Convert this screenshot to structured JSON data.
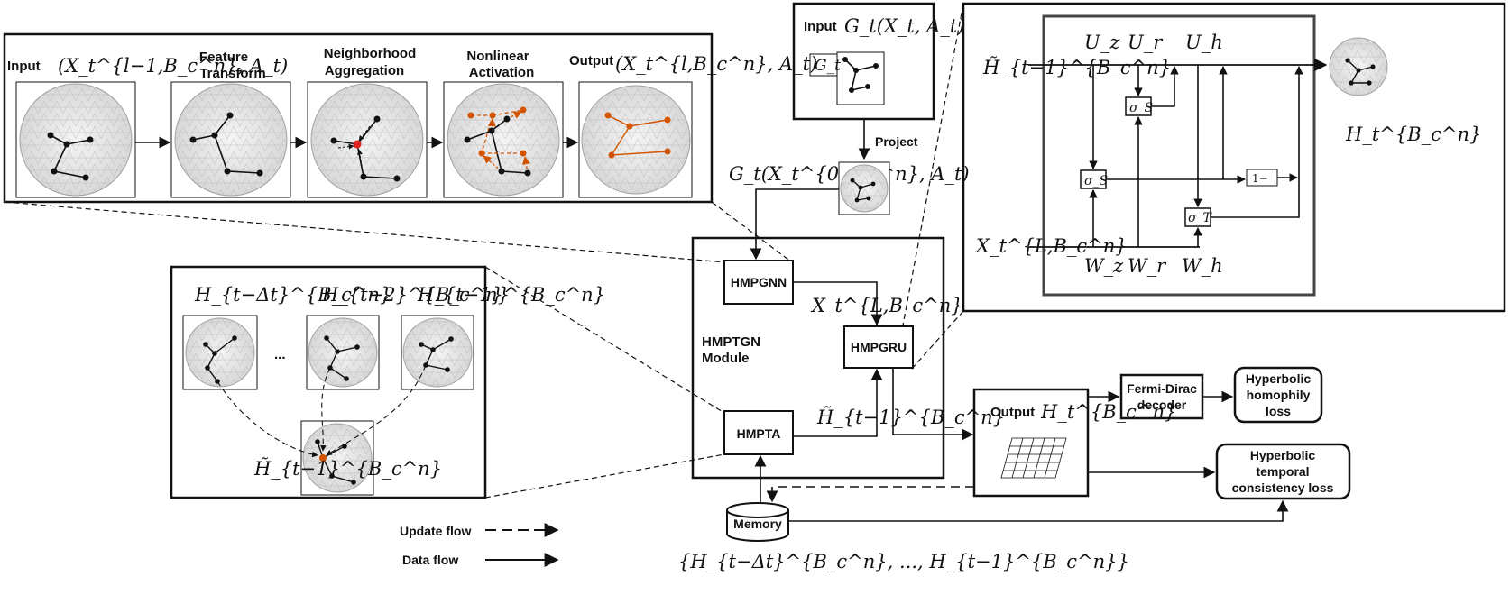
{
  "top_panel": {
    "input_word": "Input",
    "input_math": "(X_t^{l−1,B_c^n}, A_t)",
    "feature_transform": [
      "Feature",
      "Transform"
    ],
    "neighborhood_aggregation": [
      "Neighborhood",
      "Aggregation"
    ],
    "nonlinear_activation": [
      "Nonlinear",
      "Activation"
    ],
    "output_word": "Output",
    "output_math": "(X_t^{l,B_c^n}, A_t)"
  },
  "input_box": {
    "input_word": "Input",
    "input_math": "G_t(X_t, A_t)",
    "graph_tag": "G_t"
  },
  "project_label": "Project",
  "projected_graph_label": "G_t(X_t^{0,B_c^n}, A_t)",
  "gru_panel": {
    "U_z": "U_z",
    "U_r": "U_r",
    "U_h": "U_h",
    "W_z": "W_z",
    "W_r": "W_r",
    "W_h": "W_h",
    "h_prev": "H̃_{t−1}^{B_c^n}",
    "x_in": "X_t^{L,B_c^n}",
    "sigma_s": "σ_S",
    "sigma_t": "σ_T",
    "one_minus": "1−",
    "h_out": "H_t^{B_c^n}"
  },
  "module": {
    "name": [
      "HMPTGN",
      "Module"
    ],
    "hmpgnn": "HMPGNN",
    "hmpgru": "HMPGRU",
    "hmpta": "HMPTA",
    "x_L": "X_t^{L,B_c^n}",
    "h_tilde": "H̃_{t−1}^{B_c^n}"
  },
  "attention_panel": {
    "h_t_minus_dt": "H_{t−Δt}^{B_c^n}",
    "h_t_minus_2": "H_{t−2}^{B_c^n}",
    "h_t_minus_1": "H_{t−1}^{B_c^n}",
    "ellipsis": "...",
    "h_tilde": "H̃_{t−1}^{B_c^n}"
  },
  "output_box": {
    "word": "Output",
    "math": "H_t^{B_c^n}"
  },
  "fermi_dirac": [
    "Fermi-Dirac",
    "decoder"
  ],
  "homophily_loss": [
    "Hyperbolic",
    "homophily",
    "loss"
  ],
  "temporal_loss": [
    "Hyperbolic",
    "temporal",
    "consistency loss"
  ],
  "memory": "Memory",
  "memory_set": "{H_{t−Δt}^{B_c^n}, ..., H_{t−1}^{B_c^n}}",
  "legend": {
    "update": "Update flow",
    "data": "Data flow"
  },
  "colors": {
    "activation_edges": "#d35400",
    "focus_node": "#e0201b",
    "stroke": "#111111",
    "disk_fill": "#e4e4e4"
  }
}
